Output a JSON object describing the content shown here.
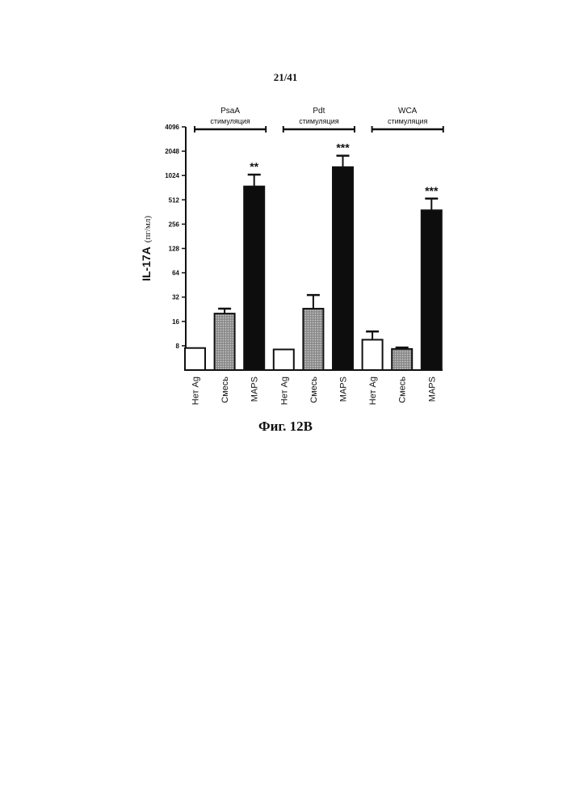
{
  "page_number": "21/41",
  "figure_caption": "Фиг. 12B",
  "colors": {
    "empty": "#ffffff",
    "mix": "#9a9a9a",
    "maps": "#0d0d0d",
    "ink": "#111111"
  },
  "chart_data": {
    "type": "bar",
    "scale": "log2",
    "ylabel": "IL-17A",
    "ylabel_unit": "(пг/мл)",
    "ylim": [
      4,
      4096
    ],
    "yticks": [
      8,
      16,
      32,
      64,
      128,
      256,
      512,
      1024,
      2048,
      4096
    ],
    "ytick_labels": [
      "8",
      "16",
      "32",
      "64",
      "128",
      "256",
      "512",
      "1024",
      "2048",
      "4096"
    ],
    "categories": [
      "Нет Ag",
      "Смесь",
      "MAPS",
      "Нет Ag",
      "Смесь",
      "MAPS",
      "Нет Ag",
      "Смесь",
      "MAPS"
    ],
    "groups": [
      {
        "name": "PsaA",
        "label": "стимуляция"
      },
      {
        "name": "Pdt",
        "label": "стимуляция"
      },
      {
        "name": "WCA",
        "label": "стимуляция"
      }
    ],
    "bars": [
      {
        "category": "Нет Ag",
        "value": 7.5,
        "error": null,
        "fill": "empty",
        "sig": ""
      },
      {
        "category": "Смесь",
        "value": 20,
        "error": 23,
        "fill": "mix",
        "sig": ""
      },
      {
        "category": "MAPS",
        "value": 750,
        "error": 1050,
        "fill": "maps",
        "sig": "**"
      },
      {
        "category": "Нет Ag",
        "value": 7.2,
        "error": null,
        "fill": "empty",
        "sig": ""
      },
      {
        "category": "Смесь",
        "value": 23,
        "error": 34,
        "fill": "mix",
        "sig": ""
      },
      {
        "category": "MAPS",
        "value": 1300,
        "error": 1800,
        "fill": "maps",
        "sig": "***"
      },
      {
        "category": "Нет Ag",
        "value": 9.5,
        "error": 12,
        "fill": "empty",
        "sig": ""
      },
      {
        "category": "Смесь",
        "value": 7.3,
        "error": 7.6,
        "fill": "mix",
        "sig": ""
      },
      {
        "category": "MAPS",
        "value": 380,
        "error": 530,
        "fill": "maps",
        "sig": "***"
      }
    ]
  }
}
